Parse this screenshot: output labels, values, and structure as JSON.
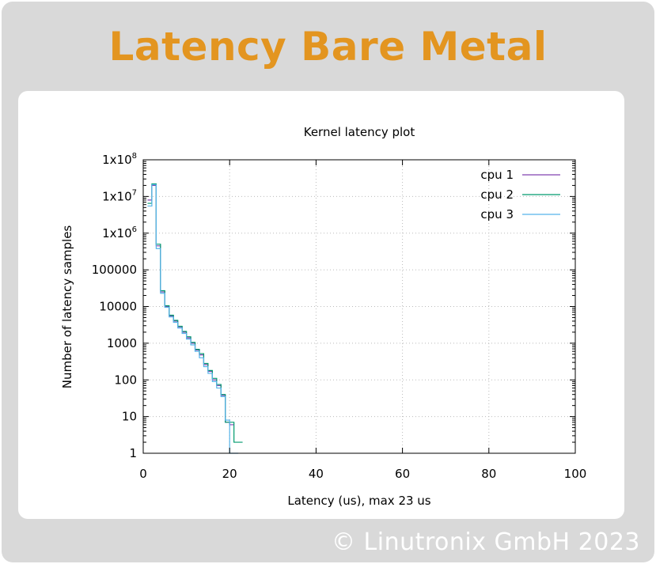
{
  "slide": {
    "headline": "Latency Bare Metal",
    "copyright": "© Linutronix GmbH 2023"
  },
  "colors": {
    "headline": "#e39520",
    "background": "#d9d9d9",
    "cpu1": "#8040b0",
    "cpu2": "#009a6e",
    "cpu3": "#56b4e9"
  },
  "chart_data": {
    "type": "line",
    "title": "Kernel latency plot",
    "xlabel": "Latency (us), max 23 us",
    "ylabel": "Number of latency samples",
    "xlim": [
      0,
      100
    ],
    "ylim": [
      1,
      100000000
    ],
    "yscale": "log",
    "grid": true,
    "legend_position": "top-right",
    "x_ticks": [
      "0",
      "20",
      "40",
      "60",
      "80",
      "100"
    ],
    "y_ticks": [
      "1",
      "10",
      "100",
      "1000",
      "10000",
      "100000",
      "1x10^6",
      "1x10^7",
      "1x10^8"
    ],
    "series": [
      {
        "name": "cpu 1",
        "x": [
          1,
          2,
          3,
          4,
          5,
          6,
          7,
          8,
          9,
          10,
          11,
          12,
          13,
          14,
          15,
          16,
          17,
          18,
          19,
          20,
          21,
          22
        ],
        "y": [
          8000000,
          20000000,
          450000,
          25000,
          10000,
          5500,
          4000,
          2800,
          2000,
          1400,
          1000,
          650,
          480,
          260,
          170,
          100,
          70,
          38,
          7,
          6,
          0,
          0
        ]
      },
      {
        "name": "cpu 2",
        "x": [
          1,
          2,
          3,
          4,
          5,
          6,
          7,
          8,
          9,
          10,
          11,
          12,
          13,
          14,
          15,
          16,
          17,
          18,
          19,
          20,
          21,
          22
        ],
        "y": [
          6500000,
          22000000,
          500000,
          27000,
          10500,
          5800,
          4200,
          2900,
          2100,
          1500,
          1050,
          680,
          520,
          280,
          180,
          110,
          75,
          40,
          7,
          7,
          2,
          2
        ]
      },
      {
        "name": "cpu 3",
        "x": [
          1,
          2,
          3,
          4,
          5,
          6,
          7,
          8,
          9,
          10,
          11,
          12,
          13,
          14,
          15,
          16,
          17,
          18,
          19,
          20,
          21,
          22
        ],
        "y": [
          5500000,
          21000000,
          380000,
          23000,
          9500,
          5200,
          3700,
          2600,
          1850,
          1300,
          900,
          600,
          400,
          230,
          150,
          90,
          60,
          35,
          8,
          1,
          1,
          0
        ]
      }
    ]
  }
}
